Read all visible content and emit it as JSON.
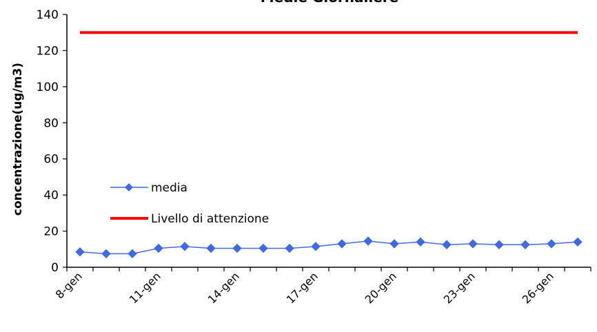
{
  "chart_data": {
    "type": "line",
    "title": "Medie Giornaliere",
    "xlabel": "",
    "ylabel": "concentrazione(ug/m3)",
    "ylim": [
      0,
      140
    ],
    "yticks": [
      0,
      20,
      40,
      60,
      80,
      100,
      120,
      140
    ],
    "x": [
      "8-gen",
      "9-gen",
      "10-gen",
      "11-gen",
      "12-gen",
      "13-gen",
      "14-gen",
      "15-gen",
      "16-gen",
      "17-gen",
      "18-gen",
      "19-gen",
      "20-gen",
      "21-gen",
      "22-gen",
      "23-gen",
      "24-gen",
      "25-gen",
      "26-gen",
      "27-gen"
    ],
    "xtick_labels": [
      "8-gen",
      "11-gen",
      "14-gen",
      "17-gen",
      "20-gen",
      "23-gen",
      "26-gen"
    ],
    "series": [
      {
        "name": "media",
        "color": "#4169e1",
        "marker": "diamond",
        "values": [
          8.5,
          7.5,
          7.5,
          10.5,
          11.5,
          10.5,
          10.5,
          10.5,
          10.5,
          11.5,
          13,
          14.5,
          13,
          14,
          12.5,
          13,
          12.5,
          12.5,
          13,
          14
        ]
      },
      {
        "name": "Livello di attenzione",
        "color": "#ff0000",
        "marker": "none",
        "values": [
          130,
          130,
          130,
          130,
          130,
          130,
          130,
          130,
          130,
          130,
          130,
          130,
          130,
          130,
          130,
          130,
          130,
          130,
          130,
          130
        ]
      }
    ],
    "grid": false,
    "legend_position": "inside-left"
  }
}
